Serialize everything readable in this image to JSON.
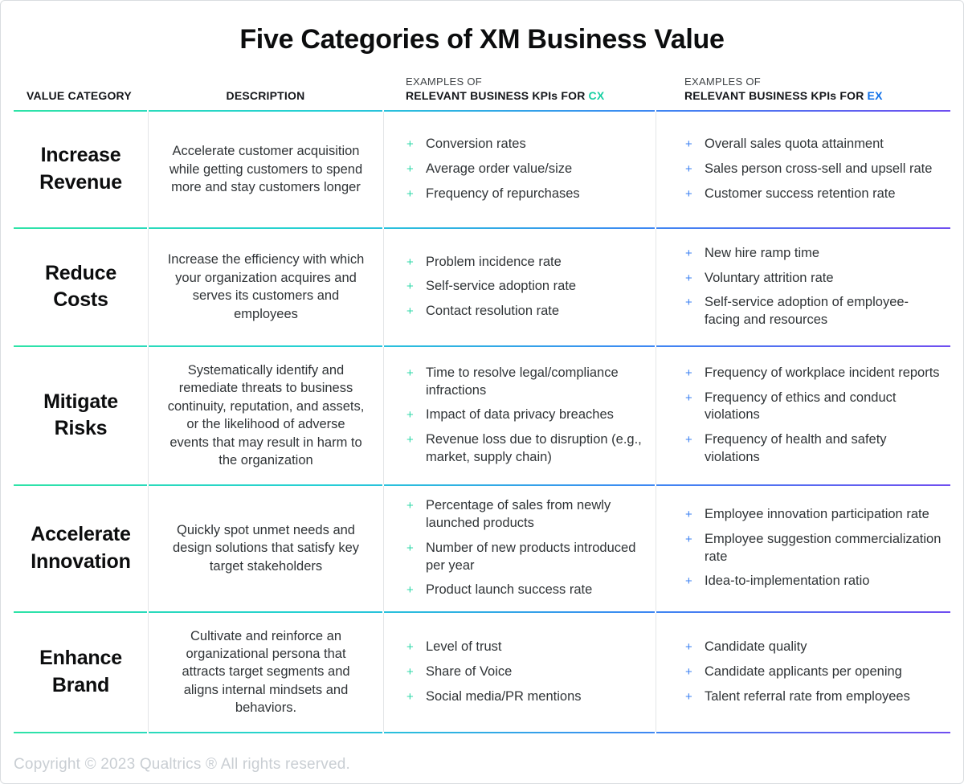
{
  "title": "Five Categories of XM Business Value",
  "header": {
    "col1": "VALUE CATEGORY",
    "col2": "DESCRIPTION",
    "col3_line1": "EXAMPLES OF",
    "col3_line2": "RELEVANT BUSINESS KPIs FOR",
    "col3_accent": "CX",
    "col4_line1": "EXAMPLES OF",
    "col4_line2": "RELEVANT BUSINESS KPIs FOR",
    "col4_accent": "EX"
  },
  "rows": [
    {
      "category": "Increase Revenue",
      "description": "Accelerate customer acquisition while getting customers to spend more and stay customers longer",
      "cx_kpis": [
        "Conversion rates",
        "Average order value/size",
        "Frequency of repurchases"
      ],
      "ex_kpis": [
        "Overall sales quota attainment",
        "Sales person cross-sell and upsell rate",
        "Customer success retention rate"
      ]
    },
    {
      "category": "Reduce Costs",
      "description": "Increase the efficiency with which your organization acquires and serves its customers and employees",
      "cx_kpis": [
        "Problem incidence rate",
        "Self-service adoption rate",
        "Contact resolution rate"
      ],
      "ex_kpis": [
        "New hire ramp time",
        "Voluntary attrition rate",
        "Self-service adoption of employee-facing and resources"
      ]
    },
    {
      "category": "Mitigate Risks",
      "description": "Systematically identify and remediate threats to business continuity, reputation, and assets, or the likelihood of adverse events that may result in harm to the organization",
      "cx_kpis": [
        "Time to resolve legal/compliance infractions",
        "Impact of data privacy breaches",
        "Revenue loss due to disruption (e.g., market, supply chain)"
      ],
      "ex_kpis": [
        "Frequency of workplace incident reports",
        "Frequency of ethics and conduct violations",
        "Frequency of health and safety violations"
      ]
    },
    {
      "category": "Accelerate Innovation",
      "description": "Quickly spot unmet needs and design solutions that satisfy key target stakeholders",
      "cx_kpis": [
        "Percentage of sales from newly launched products",
        "Number of new products introduced per year",
        "Product launch success rate"
      ],
      "ex_kpis": [
        "Employee innovation participation rate",
        "Employee suggestion commercialization rate",
        "Idea-to-implementation ratio"
      ]
    },
    {
      "category": "Enhance Brand",
      "description": "Cultivate and reinforce an organizational persona that attracts target segments and aligns internal mindsets and behaviors.",
      "cx_kpis": [
        "Level of trust",
        "Share of Voice",
        "Social media/PR mentions"
      ],
      "ex_kpis": [
        "Candidate quality",
        "Candidate applicants per opening",
        "Talent referral rate from employees"
      ]
    }
  ],
  "footer": {
    "copyright": "Copyright © 2023 Qualtrics ® All rights reserved."
  },
  "icons": {
    "bullet_glyph": "+",
    "bullet_name": "plus-icon"
  },
  "colors": {
    "cx_accent": "#16cfa2",
    "ex_accent": "#0d6fe8",
    "cx_bullet": "#2fd9a9",
    "ex_bullet": "#3e82f2",
    "gradient_start": "#2ee3a7",
    "gradient_mid1": "#25cfd6",
    "gradient_mid2": "#3b8bf2",
    "gradient_end": "#6f4ef0",
    "footer_text": "#c9ced3"
  }
}
